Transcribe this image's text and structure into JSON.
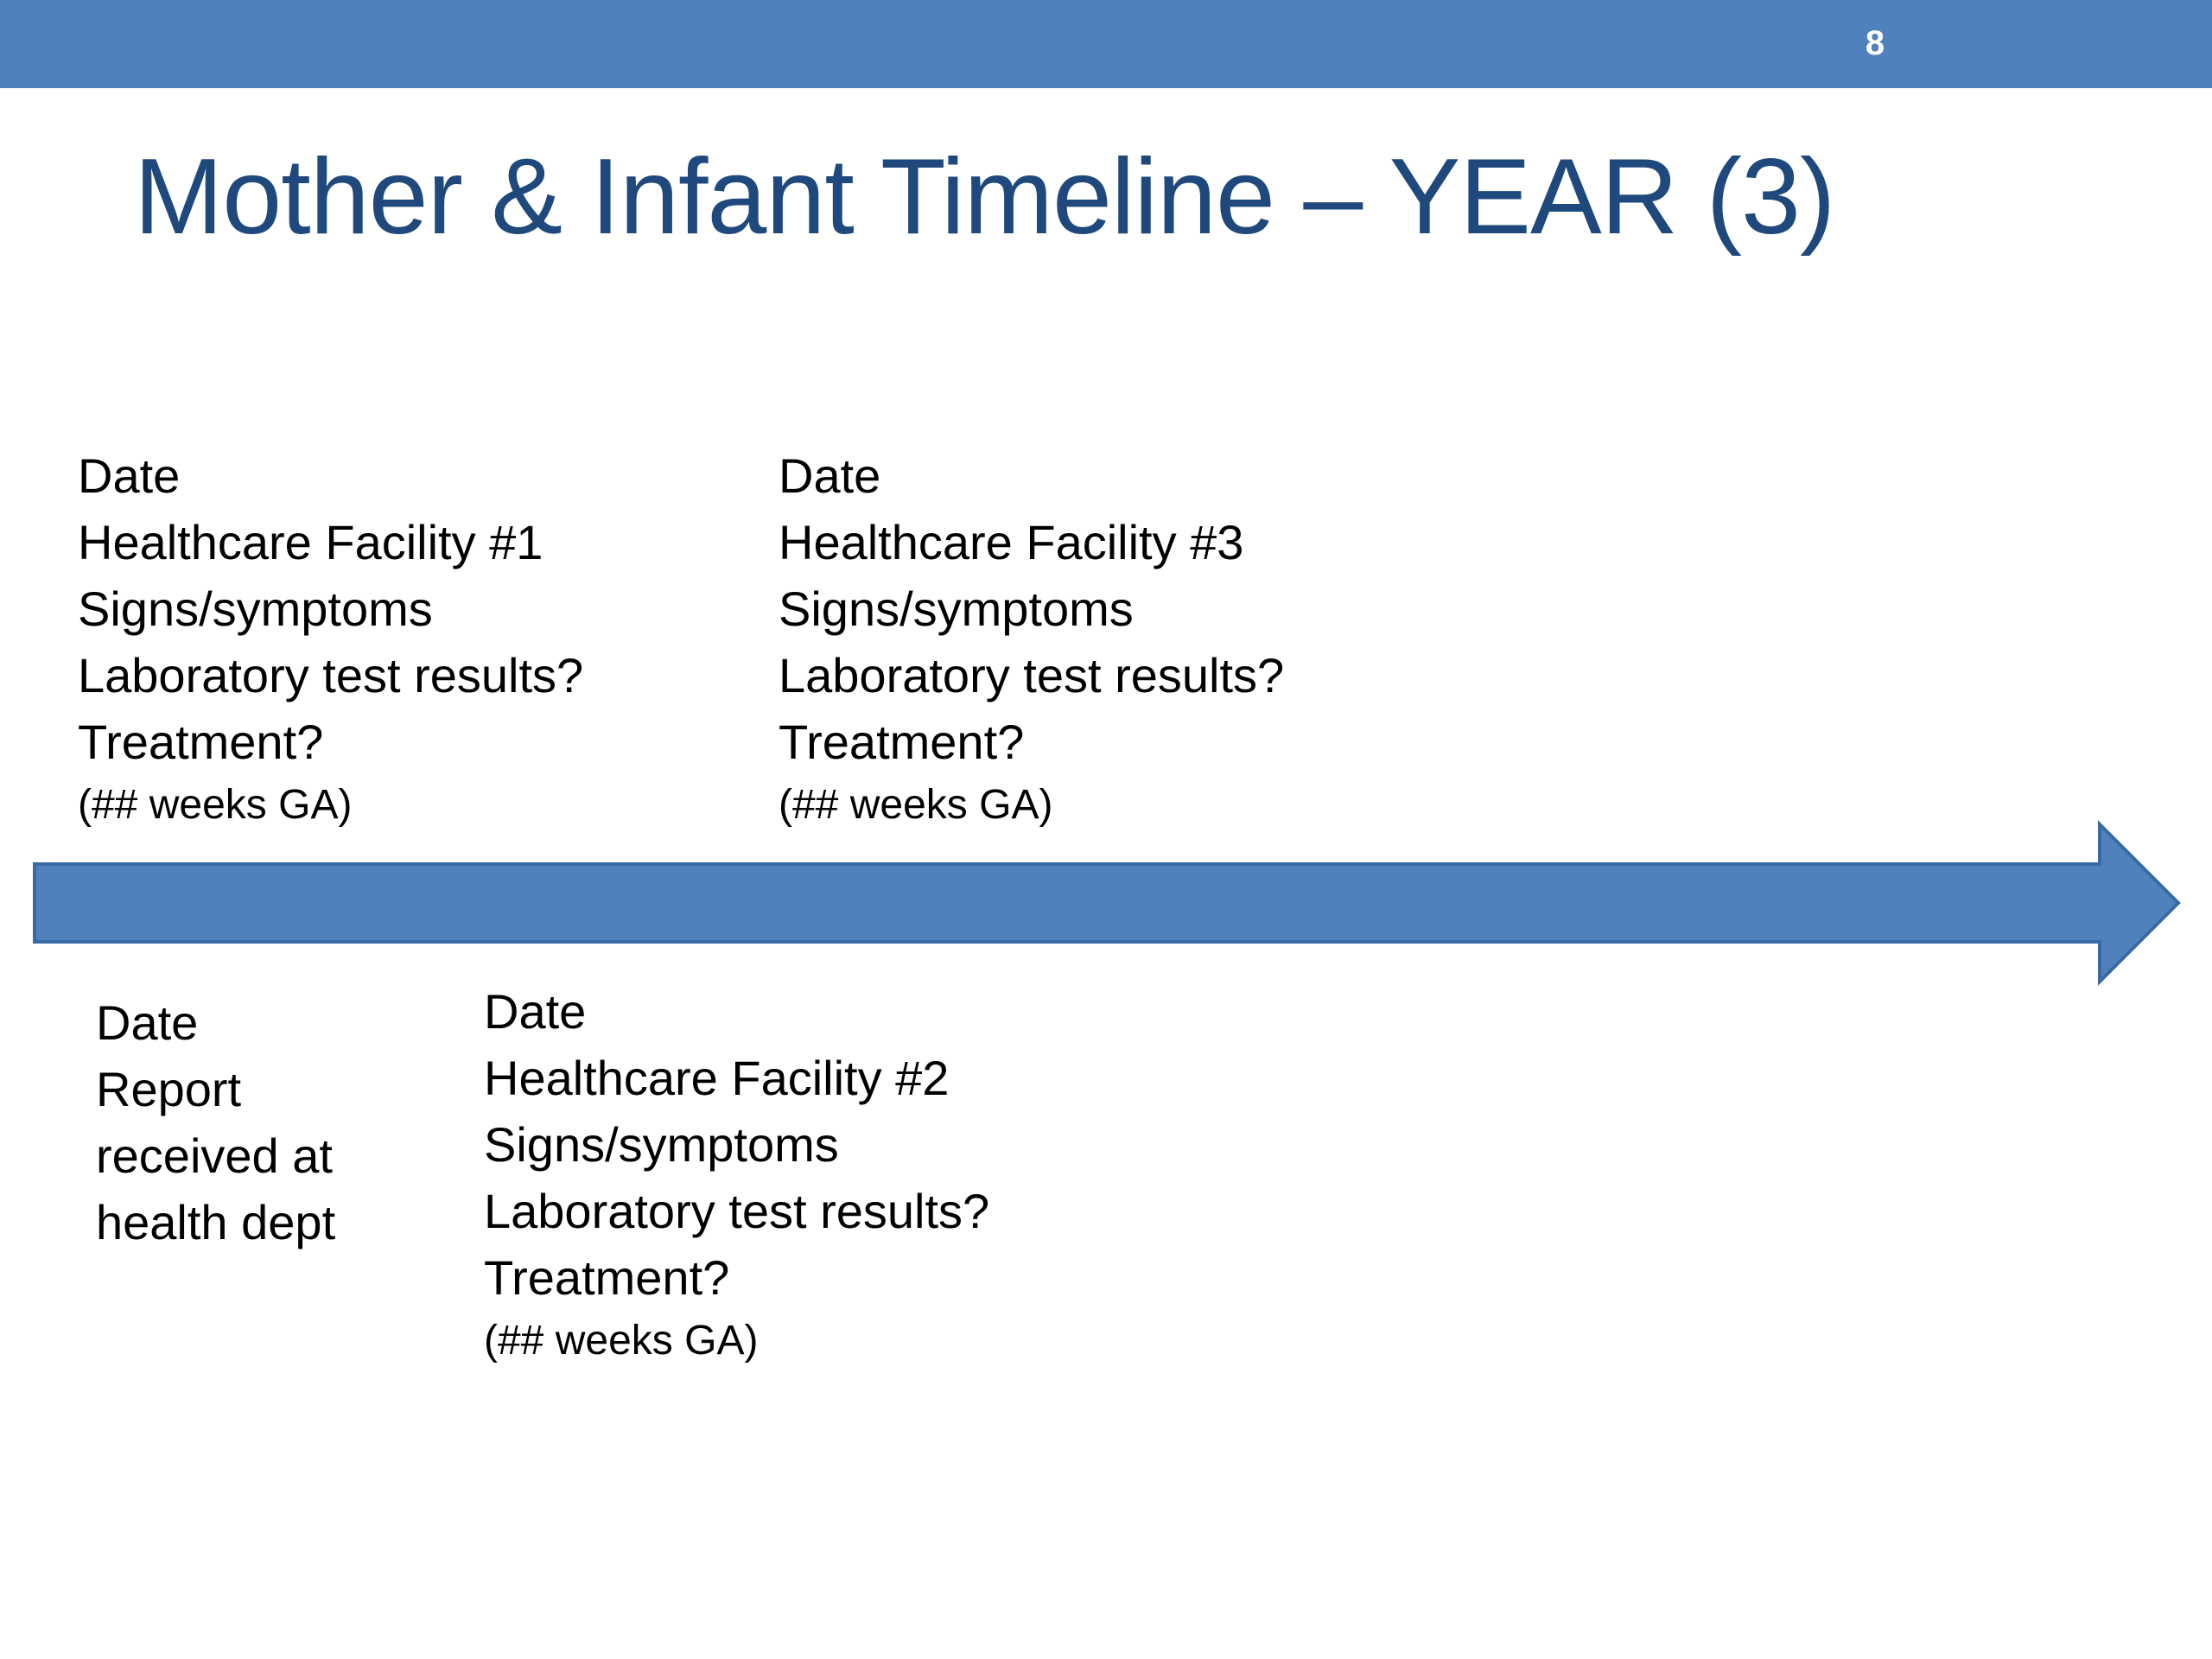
{
  "slide": {
    "number": "8",
    "title": "Mother & Infant Timeline – YEAR (3)",
    "colors": {
      "header_bar": "#4f81bd",
      "title_text": "#1f497d",
      "arrow_fill": "#4f81bd",
      "arrow_stroke": "#3a6aa3"
    }
  },
  "timeline": {
    "above": [
      {
        "date": "Date",
        "facility": "Healthcare Facility #1",
        "signs": "Signs/symptoms",
        "lab": "Laboratory test results?",
        "treatment": "Treatment?",
        "ga": "(## weeks GA)"
      },
      {
        "date": "Date",
        "facility": "Healthcare Facility #3",
        "signs": "Signs/symptoms",
        "lab": "Laboratory test results?",
        "treatment": "Treatment?",
        "ga": "(## weeks GA)"
      }
    ],
    "below": [
      {
        "date": "Date",
        "line1": "Report",
        "line2": "received at",
        "line3": "health dept"
      },
      {
        "date": "Date",
        "facility": "Healthcare Facility #2",
        "signs": "Signs/symptoms",
        "lab": "Laboratory test results?",
        "treatment": "Treatment?",
        "ga": "(## weeks GA)"
      }
    ]
  }
}
